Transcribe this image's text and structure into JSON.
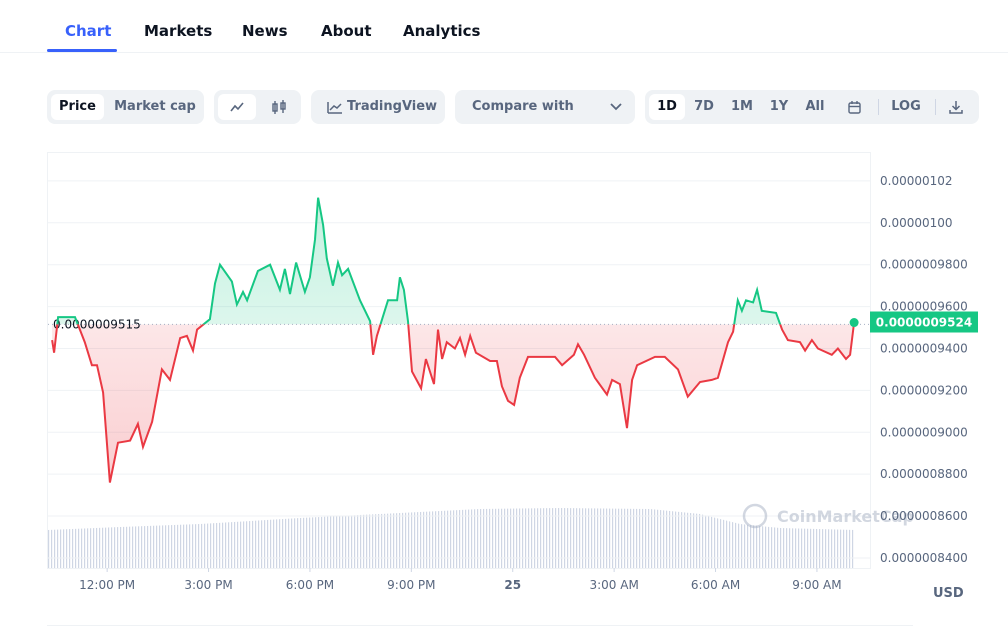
{
  "tabs": [
    "Chart",
    "Markets",
    "News",
    "About",
    "Analytics"
  ],
  "toolbar": {
    "price_toggle": [
      "Price",
      "Market cap"
    ],
    "tradingview": "TradingView",
    "compare": "Compare with",
    "ranges": [
      "1D",
      "7D",
      "1M",
      "1Y",
      "All"
    ],
    "log": "LOG"
  },
  "chart_data": {
    "type": "line",
    "x": [
      10.37,
      10.43,
      10.55,
      11.05,
      11.34,
      11.55,
      11.7,
      11.88,
      12.08,
      12.32,
      12.68,
      12.91,
      13.06,
      13.33,
      13.62,
      13.86,
      14.16,
      14.36,
      14.54,
      14.66,
      15.04,
      15.19,
      15.34,
      15.69,
      15.84,
      16.02,
      16.14,
      16.46,
      16.82,
      17.11,
      17.26,
      17.41,
      17.59,
      17.85,
      18.0,
      18.15,
      18.24,
      18.39,
      18.5,
      18.68,
      18.83,
      18.95,
      19.13,
      19.48,
      19.78,
      19.87,
      19.98,
      20.31,
      20.58,
      20.66,
      20.78,
      20.9,
      21.02,
      21.29,
      21.43,
      21.67,
      21.79,
      21.91,
      22.05,
      22.29,
      22.44,
      22.59,
      22.74,
      22.91,
      23.33,
      23.53,
      23.68,
      23.86,
      24.04,
      24.21,
      24.45,
      24.95,
      25.25,
      25.46,
      25.81,
      25.93,
      26.11,
      26.43,
      26.79,
      26.94,
      27.17,
      27.38,
      27.53,
      27.68,
      28.21,
      28.5,
      28.89,
      29.18,
      29.54,
      29.89,
      30.07,
      30.37,
      30.52,
      30.66,
      30.78,
      30.9,
      31.11,
      31.23,
      31.37,
      31.79,
      31.97,
      32.14,
      32.5,
      32.65,
      32.85,
      33.03,
      33.44,
      33.62,
      33.86,
      33.98,
      34.1
    ],
    "values": [
      9.44e-07,
      9.38e-07,
      9.55e-07,
      9.55e-07,
      9.43e-07,
      9.32e-07,
      9.32e-07,
      9.19e-07,
      8.76e-07,
      8.95e-07,
      8.96e-07,
      9.04e-07,
      8.93e-07,
      9.05e-07,
      9.3e-07,
      9.25e-07,
      9.45e-07,
      9.46e-07,
      9.39e-07,
      9.49e-07,
      9.54e-07,
      9.71e-07,
      9.8e-07,
      9.72e-07,
      9.61e-07,
      9.67e-07,
      9.63e-07,
      9.77e-07,
      9.8e-07,
      9.68e-07,
      9.78e-07,
      9.66e-07,
      9.81e-07,
      9.67e-07,
      9.74e-07,
      9.92e-07,
      1.012e-06,
      9.99e-07,
      9.83e-07,
      9.7e-07,
      9.81e-07,
      9.75e-07,
      9.78e-07,
      9.63e-07,
      9.53e-07,
      9.37e-07,
      9.46e-07,
      9.63e-07,
      9.63e-07,
      9.74e-07,
      9.68e-07,
      9.53e-07,
      9.29e-07,
      9.21e-07,
      9.35e-07,
      9.23e-07,
      9.49e-07,
      9.35e-07,
      9.43e-07,
      9.4e-07,
      9.45e-07,
      9.37e-07,
      9.46e-07,
      9.38e-07,
      9.34e-07,
      9.34e-07,
      9.22e-07,
      9.15e-07,
      9.13e-07,
      9.26e-07,
      9.36e-07,
      9.36e-07,
      9.36e-07,
      9.32e-07,
      9.37e-07,
      9.42e-07,
      9.37e-07,
      9.26e-07,
      9.18e-07,
      9.25e-07,
      9.23e-07,
      9.02e-07,
      9.25e-07,
      9.32e-07,
      9.36e-07,
      9.36e-07,
      9.3e-07,
      9.17e-07,
      9.24e-07,
      9.25e-07,
      9.26e-07,
      9.43e-07,
      9.48e-07,
      9.63e-07,
      9.58e-07,
      9.63e-07,
      9.62e-07,
      9.68e-07,
      9.58e-07,
      9.57e-07,
      9.49e-07,
      9.44e-07,
      9.43e-07,
      9.39e-07,
      9.44e-07,
      9.4e-07,
      9.37e-07,
      9.4e-07,
      9.35e-07,
      9.37e-07,
      9.524e-07
    ],
    "current_label": "0.0000009524",
    "baseline": {
      "value": 9.515e-07,
      "label": "0.0000009515"
    },
    "up_color": "#16c784",
    "down_color": "#ea3943",
    "xlim": [
      10.25,
      34.57
    ],
    "ylim": [
      8.352e-07,
      1.0338e-06
    ],
    "xticks": [
      {
        "value": 12,
        "label": "12:00 PM"
      },
      {
        "value": 15,
        "label": "3:00 PM"
      },
      {
        "value": 18,
        "label": "6:00 PM"
      },
      {
        "value": 21,
        "label": "9:00 PM"
      },
      {
        "value": 24,
        "label": "25"
      },
      {
        "value": 27,
        "label": "3:00 AM"
      },
      {
        "value": 30,
        "label": "6:00 AM"
      },
      {
        "value": 33,
        "label": "9:00 AM"
      }
    ],
    "yticks": [
      {
        "value": 1.02e-06,
        "label": "0.00000102"
      },
      {
        "value": 1e-06,
        "label": "0.00000100"
      },
      {
        "value": 9.8e-07,
        "label": "0.0000009800"
      },
      {
        "value": 9.6e-07,
        "label": "0.0000009600"
      },
      {
        "value": 9.4e-07,
        "label": "0.0000009400"
      },
      {
        "value": 9.2e-07,
        "label": "0.0000009200"
      },
      {
        "value": 9e-07,
        "label": "0.0000009000"
      },
      {
        "value": 8.8e-07,
        "label": "0.0000008800"
      },
      {
        "value": 8.6e-07,
        "label": "0.0000008600"
      },
      {
        "value": 8.4e-07,
        "label": "0.0000008400"
      }
    ],
    "grid": true,
    "currency": "USD",
    "watermark": "CoinMarketCap"
  }
}
